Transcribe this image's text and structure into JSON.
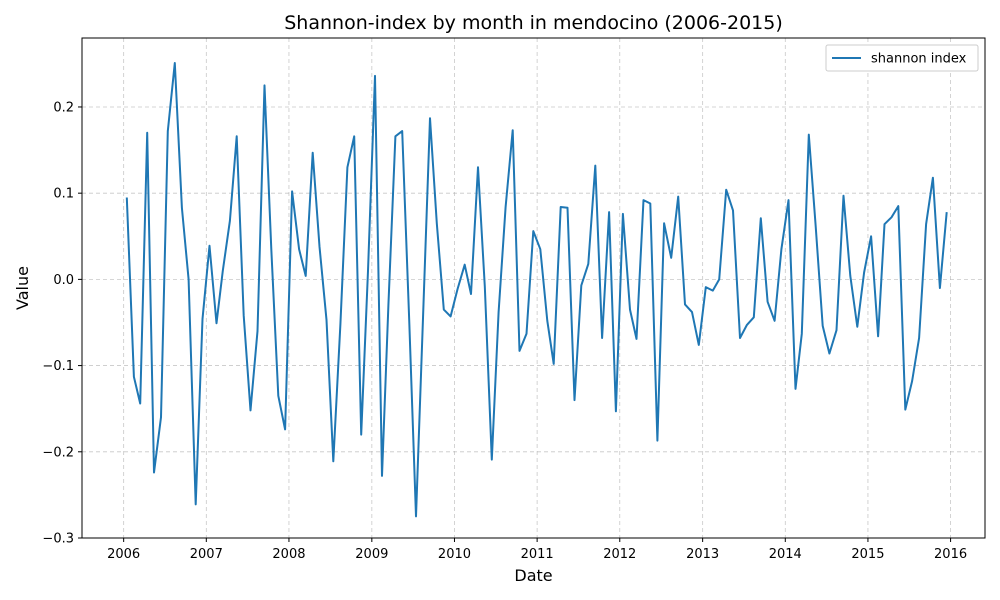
{
  "chart_data": {
    "type": "line",
    "title": "Shannon-index by month in mendocino (2006-2015)",
    "xlabel": "Date",
    "ylabel": "Value",
    "xlim": [
      "2005-07-01",
      "2016-06-01"
    ],
    "ylim": [
      -0.3,
      0.28
    ],
    "x_ticks": [
      "2006",
      "2007",
      "2008",
      "2009",
      "2010",
      "2011",
      "2012",
      "2013",
      "2014",
      "2015",
      "2016"
    ],
    "y_ticks": [
      0.2,
      0.1,
      0.0,
      -0.1,
      -0.2,
      -0.3
    ],
    "y_tick_labels": [
      "0.2",
      "0.1",
      "0.0",
      "−0.1",
      "−0.2",
      "−0.3"
    ],
    "grid": true,
    "legend_position": "top-right",
    "colors": {
      "series": "#1f77b4",
      "grid": "#b0b0b0"
    },
    "series": [
      {
        "name": "shannon index",
        "x": [
          "2006-01",
          "2006-02",
          "2006-03",
          "2006-04",
          "2006-05",
          "2006-06",
          "2006-07",
          "2006-08",
          "2006-09",
          "2006-10",
          "2006-11",
          "2006-12",
          "2007-01",
          "2007-02",
          "2007-03",
          "2007-04",
          "2007-05",
          "2007-06",
          "2007-07",
          "2007-08",
          "2007-09",
          "2007-10",
          "2007-11",
          "2007-12",
          "2008-01",
          "2008-02",
          "2008-03",
          "2008-04",
          "2008-05",
          "2008-06",
          "2008-07",
          "2008-08",
          "2008-09",
          "2008-10",
          "2008-11",
          "2008-12",
          "2009-01",
          "2009-02",
          "2009-03",
          "2009-04",
          "2009-05",
          "2009-06",
          "2009-07",
          "2009-08",
          "2009-09",
          "2009-10",
          "2009-11",
          "2009-12",
          "2010-01",
          "2010-02",
          "2010-03",
          "2010-04",
          "2010-05",
          "2010-06",
          "2010-07",
          "2010-08",
          "2010-09",
          "2010-10",
          "2010-11",
          "2010-12",
          "2011-01",
          "2011-02",
          "2011-03",
          "2011-04",
          "2011-05",
          "2011-06",
          "2011-07",
          "2011-08",
          "2011-09",
          "2011-10",
          "2011-11",
          "2011-12",
          "2012-01",
          "2012-02",
          "2012-03",
          "2012-04",
          "2012-05",
          "2012-06",
          "2012-07",
          "2012-08",
          "2012-09",
          "2012-10",
          "2012-11",
          "2012-12",
          "2013-01",
          "2013-02",
          "2013-03",
          "2013-04",
          "2013-05",
          "2013-06",
          "2013-07",
          "2013-08",
          "2013-09",
          "2013-10",
          "2013-11",
          "2013-12",
          "2014-01",
          "2014-02",
          "2014-03",
          "2014-04",
          "2014-05",
          "2014-06",
          "2014-07",
          "2014-08",
          "2014-09",
          "2014-10",
          "2014-11",
          "2014-12",
          "2015-01",
          "2015-02",
          "2015-03",
          "2015-04",
          "2015-05",
          "2015-06",
          "2015-07",
          "2015-08",
          "2015-09",
          "2015-10",
          "2015-11",
          "2015-12"
        ],
        "values": [
          0.095,
          -0.113,
          -0.144,
          0.17,
          -0.224,
          -0.16,
          0.172,
          0.251,
          0.083,
          0.0,
          -0.261,
          -0.046,
          0.039,
          -0.051,
          0.01,
          0.068,
          0.166,
          -0.042,
          -0.152,
          -0.06,
          0.225,
          0.035,
          -0.135,
          -0.174,
          0.102,
          0.035,
          0.004,
          0.147,
          0.038,
          -0.047,
          -0.211,
          -0.052,
          0.13,
          0.166,
          -0.18,
          0.01,
          0.236,
          -0.228,
          -0.03,
          0.166,
          0.172,
          -0.047,
          -0.275,
          -0.045,
          0.187,
          0.065,
          -0.035,
          -0.043,
          -0.011,
          0.017,
          -0.017,
          0.13,
          -0.008,
          -0.209,
          -0.038,
          0.084,
          0.173,
          -0.083,
          -0.063,
          0.056,
          0.035,
          -0.048,
          -0.098,
          0.084,
          0.083,
          -0.14,
          -0.007,
          0.018,
          0.132,
          -0.068,
          0.078,
          -0.153,
          0.076,
          -0.035,
          -0.069,
          0.092,
          0.088,
          -0.187,
          0.065,
          0.025,
          0.096,
          -0.029,
          -0.038,
          -0.076,
          -0.009,
          -0.013,
          0.0,
          0.104,
          0.08,
          -0.068,
          -0.053,
          -0.044,
          0.071,
          -0.026,
          -0.048,
          0.035,
          0.092,
          -0.127,
          -0.063,
          0.168,
          0.063,
          -0.054,
          -0.086,
          -0.059,
          0.097,
          0.004,
          -0.055,
          0.008,
          0.05,
          -0.066,
          0.064,
          0.072,
          0.085,
          -0.151,
          -0.118,
          -0.068,
          0.064,
          0.118,
          -0.01,
          0.078
        ]
      }
    ]
  }
}
